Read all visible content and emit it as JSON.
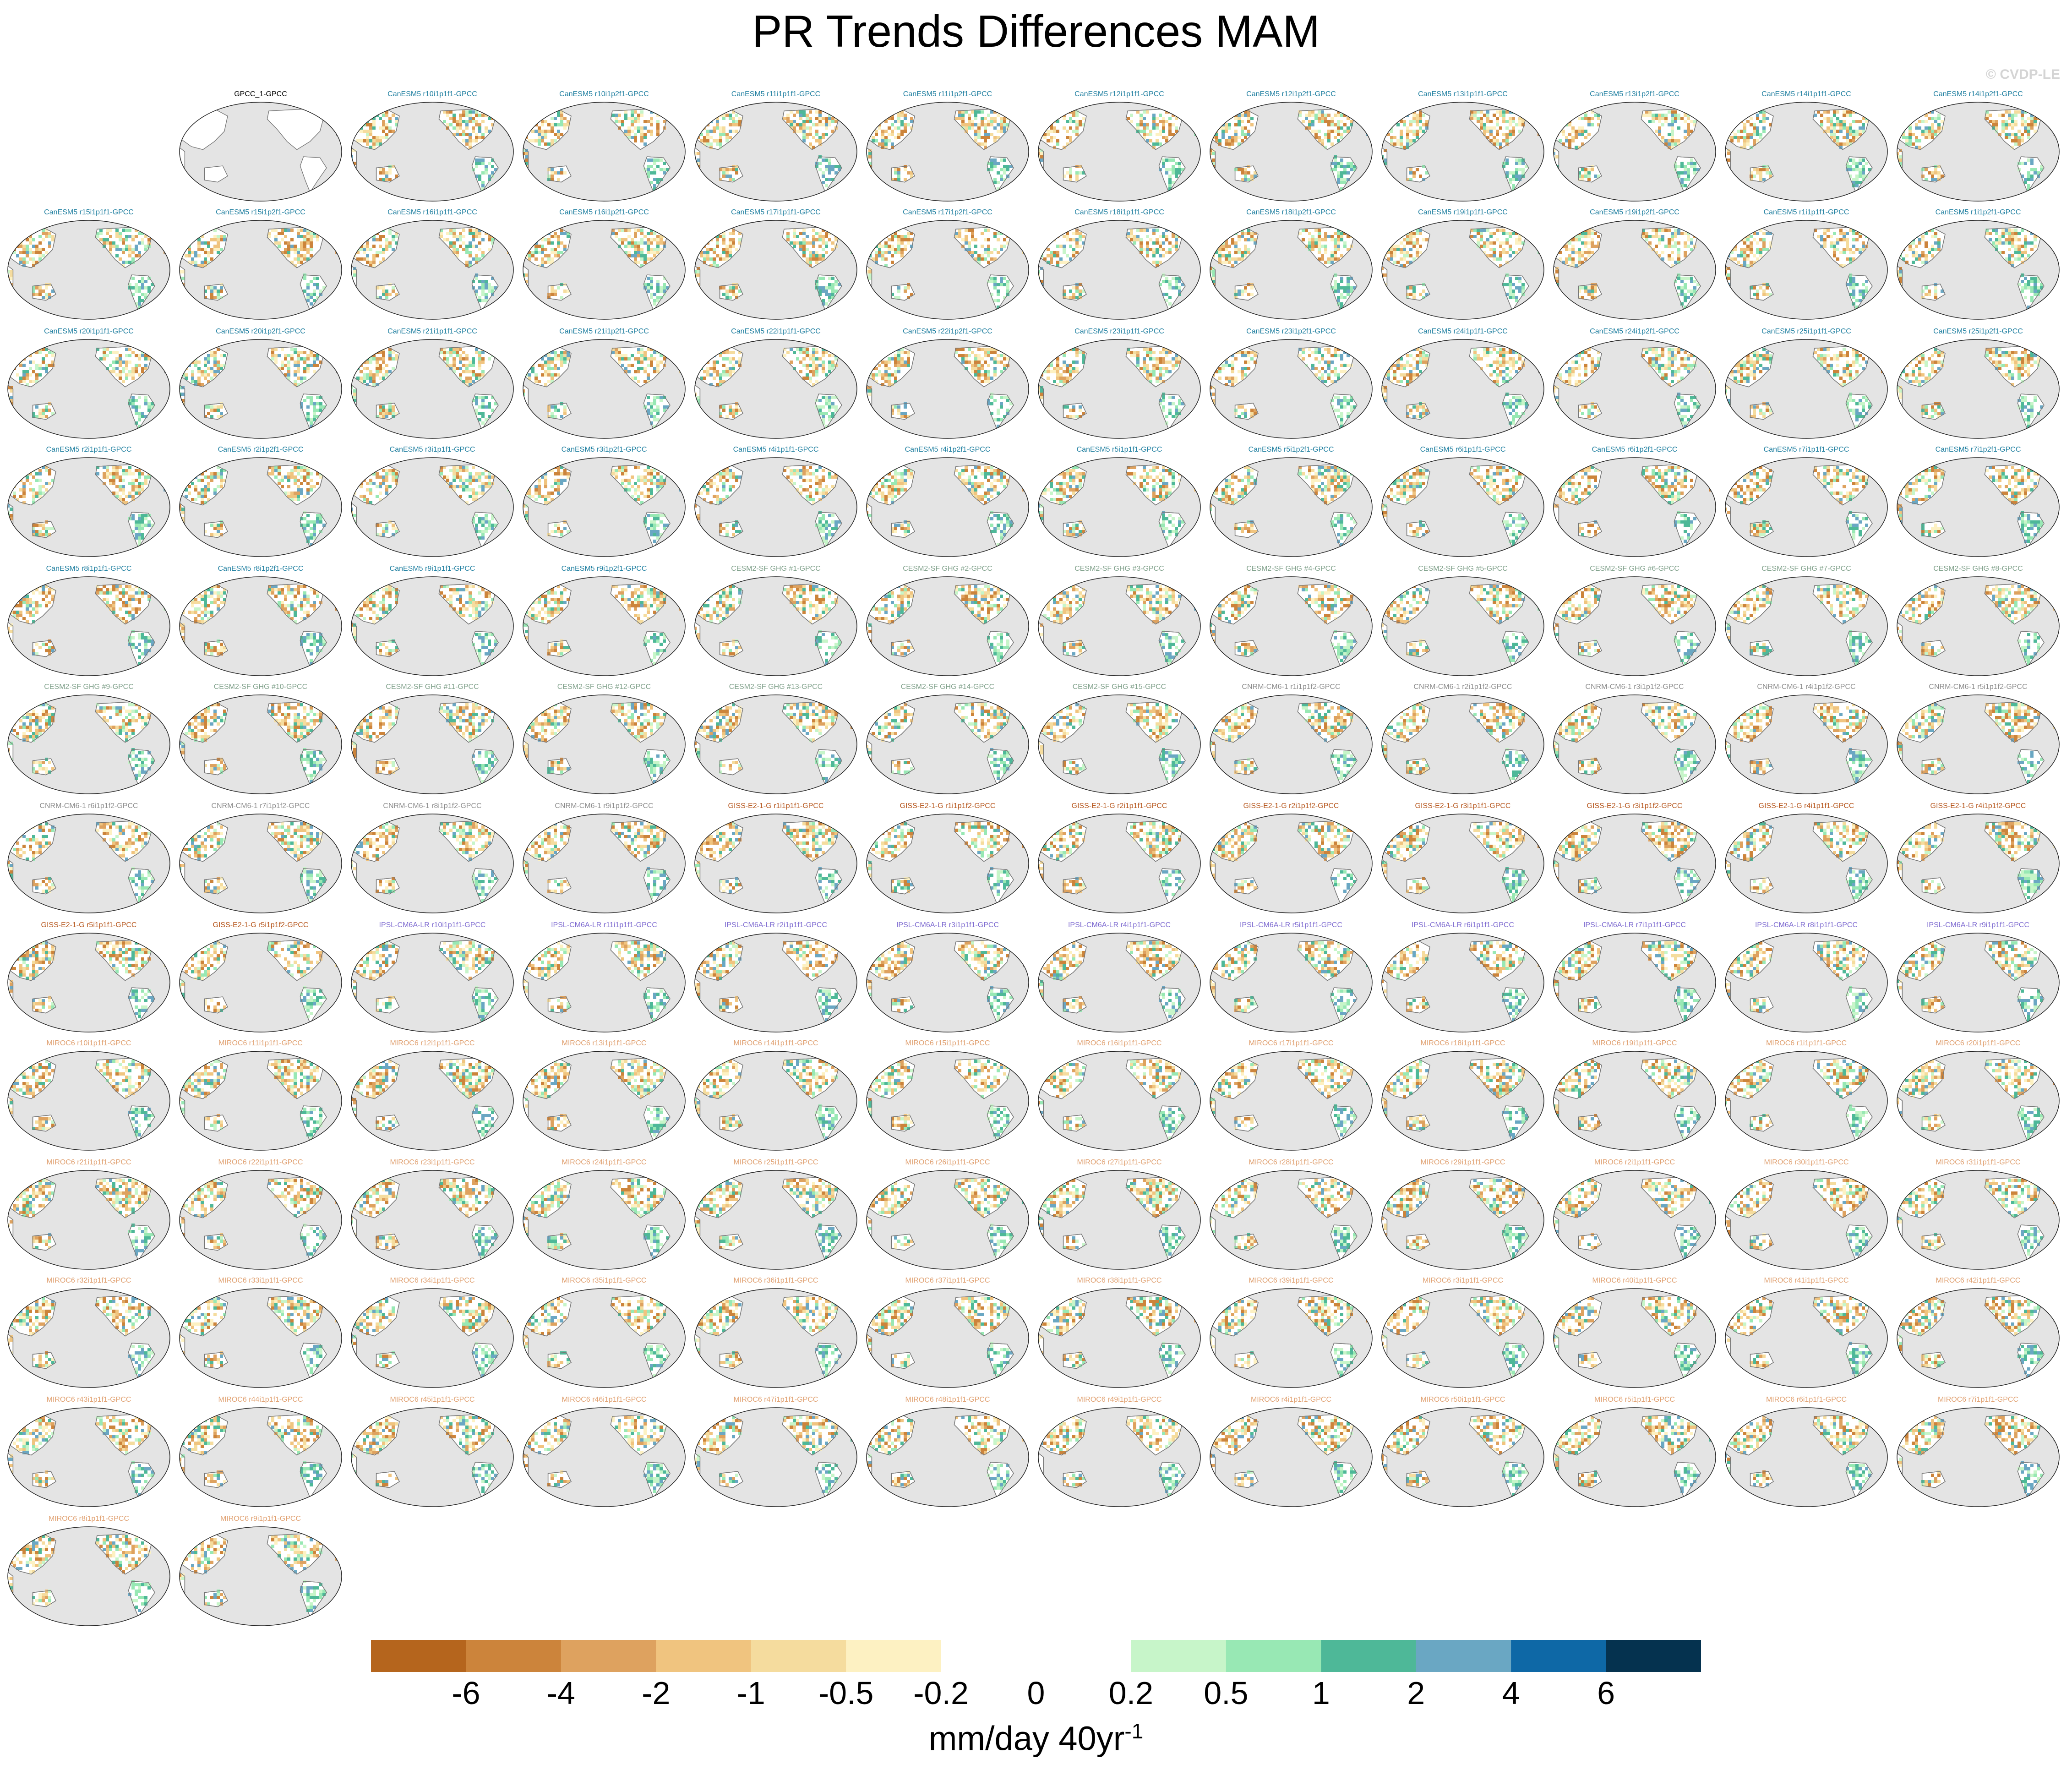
{
  "title": "PR Trends Differences MAM",
  "watermark": "© CVDP-LE",
  "colors": {
    "ocean": "#e4e4e4",
    "land": "#ffffff",
    "coast": "#777777",
    "model_colors": {
      "obs": "#000000",
      "CanESM5": "#1f7fa0",
      "CESM2-SF GHG": "#7fa08a",
      "CNRM-CM6-1": "#8c8c8c",
      "GISS-E2-1-G": "#b5541a",
      "IPSL-CM6A-LR": "#7d6ad0",
      "MIROC6": "#e0a070"
    }
  },
  "chart_data": {
    "type": "heatmap",
    "title": "PR Trends Differences MAM",
    "projection": "global map (Pacific-centered), land-only precipitation trend differences",
    "season": "MAM",
    "panels": [
      {
        "label": "GPCC_1-GPCC",
        "model": "obs"
      },
      {
        "label": "CanESM5 r10i1p1f1-GPCC",
        "model": "CanESM5"
      },
      {
        "label": "CanESM5 r10i1p2f1-GPCC",
        "model": "CanESM5"
      },
      {
        "label": "CanESM5 r11i1p1f1-GPCC",
        "model": "CanESM5"
      },
      {
        "label": "CanESM5 r11i1p2f1-GPCC",
        "model": "CanESM5"
      },
      {
        "label": "CanESM5 r12i1p1f1-GPCC",
        "model": "CanESM5"
      },
      {
        "label": "CanESM5 r12i1p2f1-GPCC",
        "model": "CanESM5"
      },
      {
        "label": "CanESM5 r13i1p1f1-GPCC",
        "model": "CanESM5"
      },
      {
        "label": "CanESM5 r13i1p2f1-GPCC",
        "model": "CanESM5"
      },
      {
        "label": "CanESM5 r14i1p1f1-GPCC",
        "model": "CanESM5"
      },
      {
        "label": "CanESM5 r14i1p2f1-GPCC",
        "model": "CanESM5"
      },
      {
        "label": "CanESM5 r15i1p1f1-GPCC",
        "model": "CanESM5"
      },
      {
        "label": "CanESM5 r15i1p2f1-GPCC",
        "model": "CanESM5"
      },
      {
        "label": "CanESM5 r16i1p1f1-GPCC",
        "model": "CanESM5"
      },
      {
        "label": "CanESM5 r16i1p2f1-GPCC",
        "model": "CanESM5"
      },
      {
        "label": "CanESM5 r17i1p1f1-GPCC",
        "model": "CanESM5"
      },
      {
        "label": "CanESM5 r17i1p2f1-GPCC",
        "model": "CanESM5"
      },
      {
        "label": "CanESM5 r18i1p1f1-GPCC",
        "model": "CanESM5"
      },
      {
        "label": "CanESM5 r18i1p2f1-GPCC",
        "model": "CanESM5"
      },
      {
        "label": "CanESM5 r19i1p1f1-GPCC",
        "model": "CanESM5"
      },
      {
        "label": "CanESM5 r19i1p2f1-GPCC",
        "model": "CanESM5"
      },
      {
        "label": "CanESM5 r1i1p1f1-GPCC",
        "model": "CanESM5"
      },
      {
        "label": "CanESM5 r1i1p2f1-GPCC",
        "model": "CanESM5"
      },
      {
        "label": "CanESM5 r20i1p1f1-GPCC",
        "model": "CanESM5"
      },
      {
        "label": "CanESM5 r20i1p2f1-GPCC",
        "model": "CanESM5"
      },
      {
        "label": "CanESM5 r21i1p1f1-GPCC",
        "model": "CanESM5"
      },
      {
        "label": "CanESM5 r21i1p2f1-GPCC",
        "model": "CanESM5"
      },
      {
        "label": "CanESM5 r22i1p1f1-GPCC",
        "model": "CanESM5"
      },
      {
        "label": "CanESM5 r22i1p2f1-GPCC",
        "model": "CanESM5"
      },
      {
        "label": "CanESM5 r23i1p1f1-GPCC",
        "model": "CanESM5"
      },
      {
        "label": "CanESM5 r23i1p2f1-GPCC",
        "model": "CanESM5"
      },
      {
        "label": "CanESM5 r24i1p1f1-GPCC",
        "model": "CanESM5"
      },
      {
        "label": "CanESM5 r24i1p2f1-GPCC",
        "model": "CanESM5"
      },
      {
        "label": "CanESM5 r25i1p1f1-GPCC",
        "model": "CanESM5"
      },
      {
        "label": "CanESM5 r25i1p2f1-GPCC",
        "model": "CanESM5"
      },
      {
        "label": "CanESM5 r2i1p1f1-GPCC",
        "model": "CanESM5"
      },
      {
        "label": "CanESM5 r2i1p2f1-GPCC",
        "model": "CanESM5"
      },
      {
        "label": "CanESM5 r3i1p1f1-GPCC",
        "model": "CanESM5"
      },
      {
        "label": "CanESM5 r3i1p2f1-GPCC",
        "model": "CanESM5"
      },
      {
        "label": "CanESM5 r4i1p1f1-GPCC",
        "model": "CanESM5"
      },
      {
        "label": "CanESM5 r4i1p2f1-GPCC",
        "model": "CanESM5"
      },
      {
        "label": "CanESM5 r5i1p1f1-GPCC",
        "model": "CanESM5"
      },
      {
        "label": "CanESM5 r5i1p2f1-GPCC",
        "model": "CanESM5"
      },
      {
        "label": "CanESM5 r6i1p1f1-GPCC",
        "model": "CanESM5"
      },
      {
        "label": "CanESM5 r6i1p2f1-GPCC",
        "model": "CanESM5"
      },
      {
        "label": "CanESM5 r7i1p1f1-GPCC",
        "model": "CanESM5"
      },
      {
        "label": "CanESM5 r7i1p2f1-GPCC",
        "model": "CanESM5"
      },
      {
        "label": "CanESM5 r8i1p1f1-GPCC",
        "model": "CanESM5"
      },
      {
        "label": "CanESM5 r8i1p2f1-GPCC",
        "model": "CanESM5"
      },
      {
        "label": "CanESM5 r9i1p1f1-GPCC",
        "model": "CanESM5"
      },
      {
        "label": "CanESM5 r9i1p2f1-GPCC",
        "model": "CanESM5"
      },
      {
        "label": "CESM2-SF GHG #1-GPCC",
        "model": "CESM2-SF GHG"
      },
      {
        "label": "CESM2-SF GHG #2-GPCC",
        "model": "CESM2-SF GHG"
      },
      {
        "label": "CESM2-SF GHG #3-GPCC",
        "model": "CESM2-SF GHG"
      },
      {
        "label": "CESM2-SF GHG #4-GPCC",
        "model": "CESM2-SF GHG"
      },
      {
        "label": "CESM2-SF GHG #5-GPCC",
        "model": "CESM2-SF GHG"
      },
      {
        "label": "CESM2-SF GHG #6-GPCC",
        "model": "CESM2-SF GHG"
      },
      {
        "label": "CESM2-SF GHG #7-GPCC",
        "model": "CESM2-SF GHG"
      },
      {
        "label": "CESM2-SF GHG #8-GPCC",
        "model": "CESM2-SF GHG"
      },
      {
        "label": "CESM2-SF GHG #9-GPCC",
        "model": "CESM2-SF GHG"
      },
      {
        "label": "CESM2-SF GHG #10-GPCC",
        "model": "CESM2-SF GHG"
      },
      {
        "label": "CESM2-SF GHG #11-GPCC",
        "model": "CESM2-SF GHG"
      },
      {
        "label": "CESM2-SF GHG #12-GPCC",
        "model": "CESM2-SF GHG"
      },
      {
        "label": "CESM2-SF GHG #13-GPCC",
        "model": "CESM2-SF GHG"
      },
      {
        "label": "CESM2-SF GHG #14-GPCC",
        "model": "CESM2-SF GHG"
      },
      {
        "label": "CESM2-SF GHG #15-GPCC",
        "model": "CESM2-SF GHG"
      },
      {
        "label": "CNRM-CM6-1 r1i1p1f2-GPCC",
        "model": "CNRM-CM6-1"
      },
      {
        "label": "CNRM-CM6-1 r2i1p1f2-GPCC",
        "model": "CNRM-CM6-1"
      },
      {
        "label": "CNRM-CM6-1 r3i1p1f2-GPCC",
        "model": "CNRM-CM6-1"
      },
      {
        "label": "CNRM-CM6-1 r4i1p1f2-GPCC",
        "model": "CNRM-CM6-1"
      },
      {
        "label": "CNRM-CM6-1 r5i1p1f2-GPCC",
        "model": "CNRM-CM6-1"
      },
      {
        "label": "CNRM-CM6-1 r6i1p1f2-GPCC",
        "model": "CNRM-CM6-1"
      },
      {
        "label": "CNRM-CM6-1 r7i1p1f2-GPCC",
        "model": "CNRM-CM6-1"
      },
      {
        "label": "CNRM-CM6-1 r8i1p1f2-GPCC",
        "model": "CNRM-CM6-1"
      },
      {
        "label": "CNRM-CM6-1 r9i1p1f2-GPCC",
        "model": "CNRM-CM6-1"
      },
      {
        "label": "GISS-E2-1-G r1i1p1f1-GPCC",
        "model": "GISS-E2-1-G"
      },
      {
        "label": "GISS-E2-1-G r1i1p1f2-GPCC",
        "model": "GISS-E2-1-G"
      },
      {
        "label": "GISS-E2-1-G r2i1p1f1-GPCC",
        "model": "GISS-E2-1-G"
      },
      {
        "label": "GISS-E2-1-G r2i1p1f2-GPCC",
        "model": "GISS-E2-1-G"
      },
      {
        "label": "GISS-E2-1-G r3i1p1f1-GPCC",
        "model": "GISS-E2-1-G"
      },
      {
        "label": "GISS-E2-1-G r3i1p1f2-GPCC",
        "model": "GISS-E2-1-G"
      },
      {
        "label": "GISS-E2-1-G r4i1p1f1-GPCC",
        "model": "GISS-E2-1-G"
      },
      {
        "label": "GISS-E2-1-G r4i1p1f2-GPCC",
        "model": "GISS-E2-1-G"
      },
      {
        "label": "GISS-E2-1-G r5i1p1f1-GPCC",
        "model": "GISS-E2-1-G"
      },
      {
        "label": "GISS-E2-1-G r5i1p1f2-GPCC",
        "model": "GISS-E2-1-G"
      },
      {
        "label": "IPSL-CM6A-LR r10i1p1f1-GPCC",
        "model": "IPSL-CM6A-LR"
      },
      {
        "label": "IPSL-CM6A-LR r11i1p1f1-GPCC",
        "model": "IPSL-CM6A-LR"
      },
      {
        "label": "IPSL-CM6A-LR r2i1p1f1-GPCC",
        "model": "IPSL-CM6A-LR"
      },
      {
        "label": "IPSL-CM6A-LR r3i1p1f1-GPCC",
        "model": "IPSL-CM6A-LR"
      },
      {
        "label": "IPSL-CM6A-LR r4i1p1f1-GPCC",
        "model": "IPSL-CM6A-LR"
      },
      {
        "label": "IPSL-CM6A-LR r5i1p1f1-GPCC",
        "model": "IPSL-CM6A-LR"
      },
      {
        "label": "IPSL-CM6A-LR r6i1p1f1-GPCC",
        "model": "IPSL-CM6A-LR"
      },
      {
        "label": "IPSL-CM6A-LR r7i1p1f1-GPCC",
        "model": "IPSL-CM6A-LR"
      },
      {
        "label": "IPSL-CM6A-LR r8i1p1f1-GPCC",
        "model": "IPSL-CM6A-LR"
      },
      {
        "label": "IPSL-CM6A-LR r9i1p1f1-GPCC",
        "model": "IPSL-CM6A-LR"
      },
      {
        "label": "MIROC6 r10i1p1f1-GPCC",
        "model": "MIROC6"
      },
      {
        "label": "MIROC6 r11i1p1f1-GPCC",
        "model": "MIROC6"
      },
      {
        "label": "MIROC6 r12i1p1f1-GPCC",
        "model": "MIROC6"
      },
      {
        "label": "MIROC6 r13i1p1f1-GPCC",
        "model": "MIROC6"
      },
      {
        "label": "MIROC6 r14i1p1f1-GPCC",
        "model": "MIROC6"
      },
      {
        "label": "MIROC6 r15i1p1f1-GPCC",
        "model": "MIROC6"
      },
      {
        "label": "MIROC6 r16i1p1f1-GPCC",
        "model": "MIROC6"
      },
      {
        "label": "MIROC6 r17i1p1f1-GPCC",
        "model": "MIROC6"
      },
      {
        "label": "MIROC6 r18i1p1f1-GPCC",
        "model": "MIROC6"
      },
      {
        "label": "MIROC6 r19i1p1f1-GPCC",
        "model": "MIROC6"
      },
      {
        "label": "MIROC6 r1i1p1f1-GPCC",
        "model": "MIROC6"
      },
      {
        "label": "MIROC6 r20i1p1f1-GPCC",
        "model": "MIROC6"
      },
      {
        "label": "MIROC6 r21i1p1f1-GPCC",
        "model": "MIROC6"
      },
      {
        "label": "MIROC6 r22i1p1f1-GPCC",
        "model": "MIROC6"
      },
      {
        "label": "MIROC6 r23i1p1f1-GPCC",
        "model": "MIROC6"
      },
      {
        "label": "MIROC6 r24i1p1f1-GPCC",
        "model": "MIROC6"
      },
      {
        "label": "MIROC6 r25i1p1f1-GPCC",
        "model": "MIROC6"
      },
      {
        "label": "MIROC6 r26i1p1f1-GPCC",
        "model": "MIROC6"
      },
      {
        "label": "MIROC6 r27i1p1f1-GPCC",
        "model": "MIROC6"
      },
      {
        "label": "MIROC6 r28i1p1f1-GPCC",
        "model": "MIROC6"
      },
      {
        "label": "MIROC6 r29i1p1f1-GPCC",
        "model": "MIROC6"
      },
      {
        "label": "MIROC6 r2i1p1f1-GPCC",
        "model": "MIROC6"
      },
      {
        "label": "MIROC6 r30i1p1f1-GPCC",
        "model": "MIROC6"
      },
      {
        "label": "MIROC6 r31i1p1f1-GPCC",
        "model": "MIROC6"
      },
      {
        "label": "MIROC6 r32i1p1f1-GPCC",
        "model": "MIROC6"
      },
      {
        "label": "MIROC6 r33i1p1f1-GPCC",
        "model": "MIROC6"
      },
      {
        "label": "MIROC6 r34i1p1f1-GPCC",
        "model": "MIROC6"
      },
      {
        "label": "MIROC6 r35i1p1f1-GPCC",
        "model": "MIROC6"
      },
      {
        "label": "MIROC6 r36i1p1f1-GPCC",
        "model": "MIROC6"
      },
      {
        "label": "MIROC6 r37i1p1f1-GPCC",
        "model": "MIROC6"
      },
      {
        "label": "MIROC6 r38i1p1f1-GPCC",
        "model": "MIROC6"
      },
      {
        "label": "MIROC6 r39i1p1f1-GPCC",
        "model": "MIROC6"
      },
      {
        "label": "MIROC6 r3i1p1f1-GPCC",
        "model": "MIROC6"
      },
      {
        "label": "MIROC6 r40i1p1f1-GPCC",
        "model": "MIROC6"
      },
      {
        "label": "MIROC6 r41i1p1f1-GPCC",
        "model": "MIROC6"
      },
      {
        "label": "MIROC6 r42i1p1f1-GPCC",
        "model": "MIROC6"
      },
      {
        "label": "MIROC6 r43i1p1f1-GPCC",
        "model": "MIROC6"
      },
      {
        "label": "MIROC6 r44i1p1f1-GPCC",
        "model": "MIROC6"
      },
      {
        "label": "MIROC6 r45i1p1f1-GPCC",
        "model": "MIROC6"
      },
      {
        "label": "MIROC6 r46i1p1f1-GPCC",
        "model": "MIROC6"
      },
      {
        "label": "MIROC6 r47i1p1f1-GPCC",
        "model": "MIROC6"
      },
      {
        "label": "MIROC6 r48i1p1f1-GPCC",
        "model": "MIROC6"
      },
      {
        "label": "MIROC6 r49i1p1f1-GPCC",
        "model": "MIROC6"
      },
      {
        "label": "MIROC6 r4i1p1f1-GPCC",
        "model": "MIROC6"
      },
      {
        "label": "MIROC6 r50i1p1f1-GPCC",
        "model": "MIROC6"
      },
      {
        "label": "MIROC6 r5i1p1f1-GPCC",
        "model": "MIROC6"
      },
      {
        "label": "MIROC6 r6i1p1f1-GPCC",
        "model": "MIROC6"
      },
      {
        "label": "MIROC6 r7i1p1f1-GPCC",
        "model": "MIROC6"
      },
      {
        "label": "MIROC6 r8i1p1f1-GPCC",
        "model": "MIROC6"
      },
      {
        "label": "MIROC6 r9i1p1f1-GPCC",
        "model": "MIROC6"
      }
    ],
    "colorbar": {
      "levels": [
        "-6",
        "-4",
        "-2",
        "-1",
        "-0.5",
        "-0.2",
        "0",
        "0.2",
        "0.5",
        "1",
        "2",
        "4",
        "6"
      ],
      "colors": [
        "#b5651d",
        "#cc843b",
        "#dea25f",
        "#f0c47f",
        "#f5dc9e",
        "#fdf1c2",
        "#ffffff",
        "#ffffff",
        "#c7f5c9",
        "#98e8b4",
        "#4eb898",
        "#6aa7c3",
        "#0e68a6",
        "#05324f"
      ],
      "units_label": "mm/day 40yr",
      "units_exponent": "-1"
    }
  }
}
